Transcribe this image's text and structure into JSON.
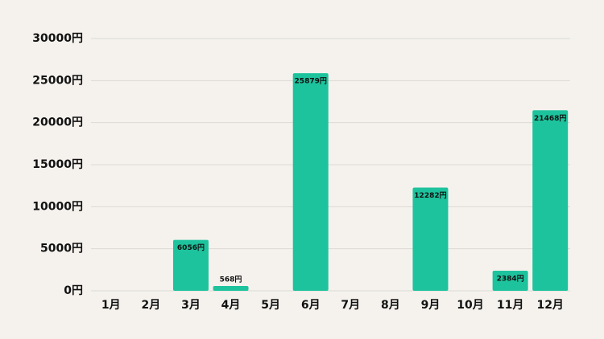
{
  "chart_data": {
    "type": "bar",
    "categories": [
      "1月",
      "2月",
      "3月",
      "4月",
      "5月",
      "6月",
      "7月",
      "8月",
      "9月",
      "10月",
      "11月",
      "12月"
    ],
    "values": [
      0,
      0,
      6056,
      568,
      0,
      25879,
      0,
      0,
      12282,
      0,
      2384,
      21468
    ],
    "value_labels": [
      null,
      null,
      "6056円",
      "568円",
      null,
      "25879円",
      null,
      null,
      "12282円",
      null,
      "2384円",
      "21468円"
    ],
    "color": "#1dc39d",
    "ylim": [
      0,
      30000
    ],
    "yticks": [
      {
        "value": 0,
        "label": "0円"
      },
      {
        "value": 5000,
        "label": "5000円"
      },
      {
        "value": 10000,
        "label": "10000円"
      },
      {
        "value": 15000,
        "label": "15000円"
      },
      {
        "value": 20000,
        "label": "20000円"
      },
      {
        "value": 25000,
        "label": "25000円"
      },
      {
        "value": 30000,
        "label": "30000円"
      }
    ],
    "grid": true
  }
}
